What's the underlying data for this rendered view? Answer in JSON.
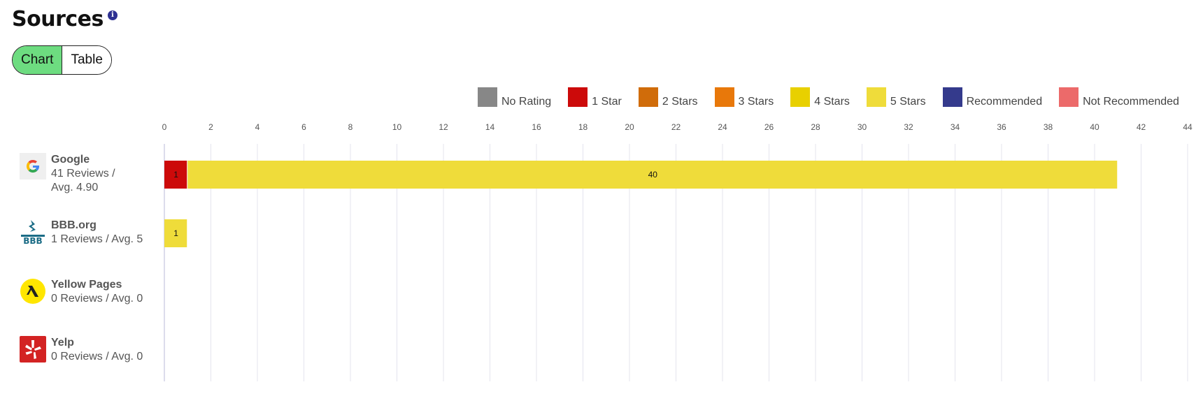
{
  "header": {
    "title": "Sources",
    "info_icon": "info-icon"
  },
  "view_toggle": {
    "chart_label": "Chart",
    "table_label": "Table",
    "active": "Chart"
  },
  "legend": [
    {
      "label": "No Rating",
      "color": "#878787"
    },
    {
      "label": "1 Star",
      "color": "#cc0a0a"
    },
    {
      "label": "2 Stars",
      "color": "#d06c0a"
    },
    {
      "label": "3 Stars",
      "color": "#e8780a"
    },
    {
      "label": "4 Stars",
      "color": "#e8d000"
    },
    {
      "label": "5 Stars",
      "color": "#efdc3a"
    },
    {
      "label": "Recommended",
      "color": "#343a8c"
    },
    {
      "label": "Not Recommended",
      "color": "#ec6a6a"
    }
  ],
  "sources": [
    {
      "name": "Google",
      "summary_1": "41 Reviews /",
      "summary_2": "Avg. 4.90",
      "icon": "google-icon"
    },
    {
      "name": "BBB.org",
      "summary_1": "1 Reviews / Avg. 5",
      "summary_2": "",
      "icon": "bbb-icon"
    },
    {
      "name": "Yellow Pages",
      "summary_1": "0 Reviews / Avg. 0",
      "summary_2": "",
      "icon": "yellow-pages-icon"
    },
    {
      "name": "Yelp",
      "summary_1": "0 Reviews / Avg. 0",
      "summary_2": "",
      "icon": "yelp-icon"
    }
  ],
  "chart_data": {
    "type": "bar",
    "orientation": "horizontal",
    "stacked": true,
    "categories": [
      "Google",
      "BBB.org",
      "Yellow Pages",
      "Yelp"
    ],
    "series": [
      {
        "name": "No Rating",
        "color": "#878787",
        "values": [
          0,
          0,
          0,
          0
        ]
      },
      {
        "name": "1 Star",
        "color": "#cc0a0a",
        "values": [
          1,
          0,
          0,
          0
        ]
      },
      {
        "name": "2 Stars",
        "color": "#d06c0a",
        "values": [
          0,
          0,
          0,
          0
        ]
      },
      {
        "name": "3 Stars",
        "color": "#e8780a",
        "values": [
          0,
          0,
          0,
          0
        ]
      },
      {
        "name": "4 Stars",
        "color": "#e8d000",
        "values": [
          0,
          0,
          0,
          0
        ]
      },
      {
        "name": "5 Stars",
        "color": "#efdc3a",
        "values": [
          40,
          1,
          0,
          0
        ]
      },
      {
        "name": "Recommended",
        "color": "#343a8c",
        "values": [
          0,
          0,
          0,
          0
        ]
      },
      {
        "name": "Not Recommended",
        "color": "#ec6a6a",
        "values": [
          0,
          0,
          0,
          0
        ]
      }
    ],
    "xlim": [
      0,
      44
    ],
    "xticks": [
      0,
      2,
      4,
      6,
      8,
      10,
      12,
      14,
      16,
      18,
      20,
      22,
      24,
      26,
      28,
      30,
      32,
      34,
      36,
      38,
      40,
      42,
      44
    ],
    "x_axis_position": "top",
    "grid": true,
    "legend_position": "top-right"
  }
}
